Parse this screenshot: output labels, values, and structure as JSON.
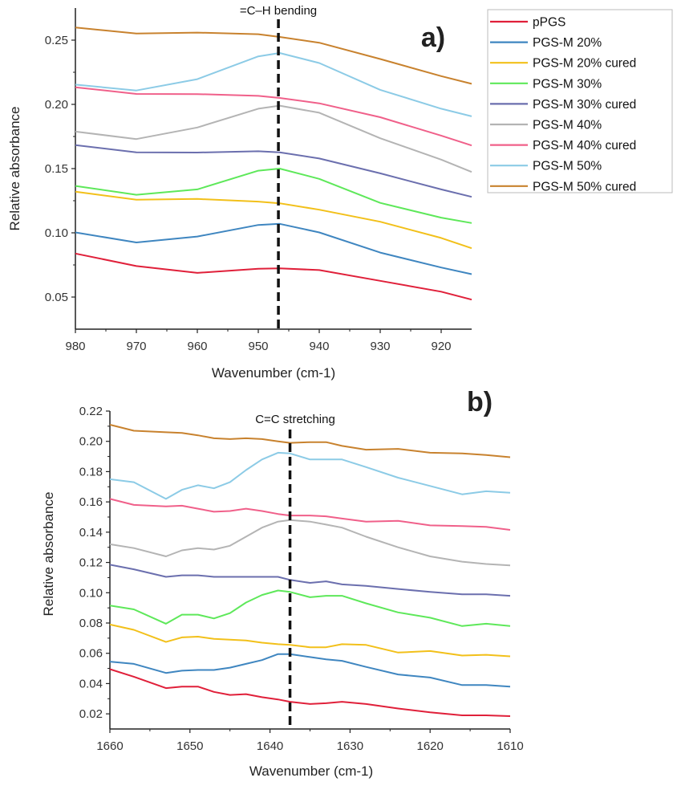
{
  "chart_data": [
    {
      "type": "line",
      "panel_label": "a)",
      "annotation": "=C–H bending",
      "annotation_x": 946.7,
      "xlabel": "Wavenumber (cm-1)",
      "ylabel": "Relative absorbance",
      "xlim": [
        980,
        915
      ],
      "ylim": [
        0.025,
        0.275
      ],
      "x_reversed": true,
      "grid": false,
      "xticks": [
        "980",
        "970",
        "960",
        "950",
        "940",
        "930",
        "920"
      ],
      "yticks": [
        "0.05",
        "0.10",
        "0.15",
        "0.20",
        "0.25"
      ],
      "legend_placement": "top-right (outside)",
      "x": [
        980,
        970,
        960,
        950,
        946.5,
        940,
        930,
        920,
        915
      ],
      "series": [
        {
          "name": "pPGS",
          "color": "#e0203a",
          "values": [
            0.0839,
            0.0741,
            0.0688,
            0.072,
            0.0724,
            0.071,
            0.0626,
            0.0542,
            0.048
          ]
        },
        {
          "name": "PGS-M 20%",
          "color": "#3f86c0",
          "values": [
            0.1003,
            0.0925,
            0.0971,
            0.1061,
            0.107,
            0.1003,
            0.0846,
            0.073,
            0.0678
          ]
        },
        {
          "name": "PGS-M 20% cured",
          "color": "#f2c01a",
          "values": [
            0.132,
            0.1258,
            0.1264,
            0.1243,
            0.123,
            0.118,
            0.1086,
            0.096,
            0.088
          ]
        },
        {
          "name": "PGS-M 30%",
          "color": "#5ee85a",
          "values": [
            0.1365,
            0.1296,
            0.1338,
            0.1484,
            0.15,
            0.142,
            0.1233,
            0.1118,
            0.1076
          ]
        },
        {
          "name": "PGS-M 30% cured",
          "color": "#6b6fae",
          "values": [
            0.1683,
            0.1627,
            0.1625,
            0.1635,
            0.1627,
            0.1579,
            0.1463,
            0.1338,
            0.128
          ]
        },
        {
          "name": "PGS-M 40%",
          "color": "#b4b4b4",
          "values": [
            0.1788,
            0.173,
            0.182,
            0.1966,
            0.199,
            0.1935,
            0.1736,
            0.157,
            0.1474
          ]
        },
        {
          "name": "PGS-M 40% cured",
          "color": "#f0608a",
          "values": [
            0.2133,
            0.2081,
            0.208,
            0.2066,
            0.205,
            0.2008,
            0.19,
            0.1757,
            0.168
          ]
        },
        {
          "name": "PGS-M 50%",
          "color": "#8ccbe6",
          "values": [
            0.2154,
            0.2108,
            0.2196,
            0.2374,
            0.24,
            0.2322,
            0.2113,
            0.1966,
            0.1907
          ]
        },
        {
          "name": "PGS-M 50% cured",
          "color": "#c8822e",
          "values": [
            0.2598,
            0.2552,
            0.2559,
            0.2546,
            0.2525,
            0.248,
            0.2353,
            0.222,
            0.216
          ]
        }
      ]
    },
    {
      "type": "line",
      "panel_label": "b)",
      "annotation": "C=C stretching",
      "annotation_x": 1637.5,
      "xlabel": "Wavenumber (cm-1)",
      "ylabel": "Relative absorbance",
      "xlim": [
        1660,
        1610
      ],
      "ylim": [
        0.01,
        0.22
      ],
      "x_reversed": true,
      "grid": false,
      "xticks": [
        "1660",
        "1650",
        "1640",
        "1630",
        "1620",
        "1610"
      ],
      "yticks": [
        "0.02",
        "0.04",
        "0.06",
        "0.08",
        "0.10",
        "0.12",
        "0.14",
        "0.16",
        "0.18",
        "0.20",
        "0.22"
      ],
      "x": [
        1660,
        1657,
        1653,
        1651,
        1649,
        1647,
        1645,
        1643,
        1641,
        1639,
        1637.5,
        1635,
        1633,
        1631,
        1628,
        1624,
        1620,
        1616,
        1613,
        1610
      ],
      "series": [
        {
          "color": "#e0203a",
          "values": [
            0.0495,
            0.0445,
            0.037,
            0.038,
            0.038,
            0.0345,
            0.0325,
            0.033,
            0.031,
            0.0295,
            0.028,
            0.0265,
            0.027,
            0.028,
            0.0265,
            0.0235,
            0.021,
            0.019,
            0.019,
            0.0185
          ]
        },
        {
          "color": "#3f86c0",
          "values": [
            0.0545,
            0.053,
            0.047,
            0.0485,
            0.049,
            0.049,
            0.0505,
            0.053,
            0.0555,
            0.0595,
            0.0595,
            0.0575,
            0.056,
            0.055,
            0.051,
            0.046,
            0.044,
            0.039,
            0.039,
            0.038
          ]
        },
        {
          "color": "#f2c01a",
          "values": [
            0.079,
            0.0755,
            0.0675,
            0.0705,
            0.071,
            0.0695,
            0.069,
            0.0685,
            0.067,
            0.066,
            0.0655,
            0.064,
            0.064,
            0.066,
            0.0655,
            0.0605,
            0.0615,
            0.0585,
            0.059,
            0.058
          ]
        },
        {
          "color": "#5ee85a",
          "values": [
            0.0915,
            0.089,
            0.0795,
            0.0855,
            0.0855,
            0.083,
            0.0865,
            0.0935,
            0.0985,
            0.1015,
            0.1005,
            0.097,
            0.098,
            0.098,
            0.093,
            0.087,
            0.0835,
            0.078,
            0.0795,
            0.078
          ]
        },
        {
          "color": "#6b6fae",
          "values": [
            0.1185,
            0.1155,
            0.1105,
            0.1115,
            0.1115,
            0.1105,
            0.1105,
            0.1105,
            0.1105,
            0.1105,
            0.1085,
            0.1065,
            0.1075,
            0.1055,
            0.1045,
            0.1025,
            0.1005,
            0.099,
            0.099,
            0.098
          ]
        },
        {
          "color": "#b4b4b4",
          "values": [
            0.132,
            0.1295,
            0.124,
            0.128,
            0.1295,
            0.1285,
            0.131,
            0.137,
            0.143,
            0.147,
            0.148,
            0.147,
            0.145,
            0.143,
            0.137,
            0.13,
            0.124,
            0.1205,
            0.119,
            0.118
          ]
        },
        {
          "color": "#f0608a",
          "values": [
            0.162,
            0.158,
            0.157,
            0.1575,
            0.1555,
            0.1535,
            0.154,
            0.1555,
            0.154,
            0.152,
            0.151,
            0.151,
            0.1505,
            0.149,
            0.147,
            0.1475,
            0.1445,
            0.144,
            0.1435,
            0.1415
          ]
        },
        {
          "color": "#8ccbe6",
          "values": [
            0.175,
            0.173,
            0.162,
            0.168,
            0.171,
            0.169,
            0.173,
            0.181,
            0.188,
            0.1925,
            0.192,
            0.188,
            0.188,
            0.188,
            0.183,
            0.176,
            0.1705,
            0.165,
            0.167,
            0.166
          ]
        },
        {
          "color": "#c8822e",
          "values": [
            0.211,
            0.207,
            0.206,
            0.2055,
            0.204,
            0.202,
            0.2015,
            0.202,
            0.2015,
            0.2,
            0.199,
            0.1995,
            0.1995,
            0.197,
            0.1945,
            0.195,
            0.1925,
            0.192,
            0.191,
            0.1895
          ]
        }
      ]
    }
  ]
}
